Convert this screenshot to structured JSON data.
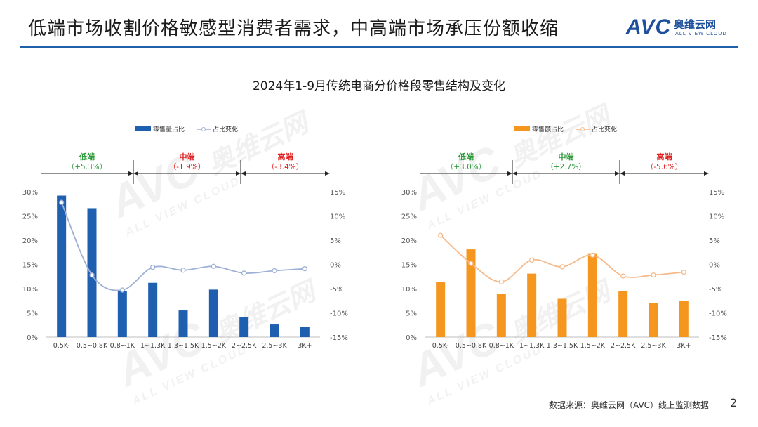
{
  "header": {
    "title": "低端市场收割价格敏感型消费者需求，中高端市场承压份额收缩",
    "logo": {
      "mark": "AVC",
      "name_cn": "奥维云网",
      "name_en": "ALL VIEW CLOUD"
    }
  },
  "chart_title": "2024年1-9月传统电商分价格段零售结构及变化",
  "watermark": {
    "mark": "AVC",
    "cn": "奥维云网",
    "en": "ALL VIEW CLOUD"
  },
  "chart_data": [
    {
      "type": "bar+line",
      "legend": {
        "bar": "零售量占比",
        "line": "占比变化"
      },
      "categories": [
        "0.5K-",
        "0.5~0.8K",
        "0.8~1K",
        "1~1.3K",
        "1.3~1.5K",
        "1.5~2K",
        "2~2.5K",
        "2.5~3K",
        "3K+"
      ],
      "bar_values": [
        29.2,
        26.6,
        9.5,
        11.2,
        5.5,
        9.8,
        4.2,
        2.6,
        2.1
      ],
      "line_values": [
        12.8,
        -2.2,
        -5.3,
        -0.6,
        -1.2,
        -0.4,
        -1.8,
        -1.3,
        -0.9
      ],
      "y_left": {
        "min": 0,
        "max": 30,
        "ticks": [
          "0%",
          "5%",
          "10%",
          "15%",
          "20%",
          "25%",
          "30%"
        ]
      },
      "y_right": {
        "min": -15,
        "max": 15,
        "ticks": [
          "-15%",
          "-10%",
          "-5%",
          "0%",
          "5%",
          "10%",
          "15%"
        ]
      },
      "segments": [
        {
          "name": "低端",
          "change": "（+5.3%）",
          "color": "#2e9b3a"
        },
        {
          "name": "中端",
          "change": "（-1.9%）",
          "color": "#e02020"
        },
        {
          "name": "高端",
          "change": "（-3.4%）",
          "color": "#e02020"
        }
      ],
      "bar_color": "#1f5fb0",
      "line_color": "#9fb0d6"
    },
    {
      "type": "bar+line",
      "legend": {
        "bar": "零售额占比",
        "line": "占比变化"
      },
      "categories": [
        "0.5K-",
        "0.5~0.8K",
        "0.8~1K",
        "1~1.3K",
        "1.3~1.5K",
        "1.5~2K",
        "2~2.5K",
        "2.5~3K",
        "3K+"
      ],
      "bar_values": [
        11.4,
        18.1,
        8.9,
        13.1,
        7.9,
        17.3,
        9.5,
        7.1,
        7.4
      ],
      "line_values": [
        6.0,
        0.2,
        -3.6,
        0.9,
        -0.5,
        1.9,
        -2.4,
        -2.2,
        -1.6
      ],
      "y_left": {
        "min": 0,
        "max": 30,
        "ticks": [
          "0%",
          "5%",
          "10%",
          "15%",
          "20%",
          "25%",
          "30%"
        ]
      },
      "y_right": {
        "min": -15,
        "max": 15,
        "ticks": [
          "-15%",
          "-10%",
          "-5%",
          "0%",
          "5%",
          "10%",
          "15%"
        ]
      },
      "segments": [
        {
          "name": "低端",
          "change": "（+3.0%）",
          "color": "#2e9b3a"
        },
        {
          "name": "中端",
          "change": "（+2.7%）",
          "color": "#2e9b3a"
        },
        {
          "name": "高端",
          "change": "（-5.6%）",
          "color": "#e02020"
        }
      ],
      "bar_color": "#f5961e",
      "line_color": "#f5b98a"
    }
  ],
  "footer": {
    "source": "数据来源：奥维云网（AVC）线上监测数据",
    "page": "2"
  }
}
